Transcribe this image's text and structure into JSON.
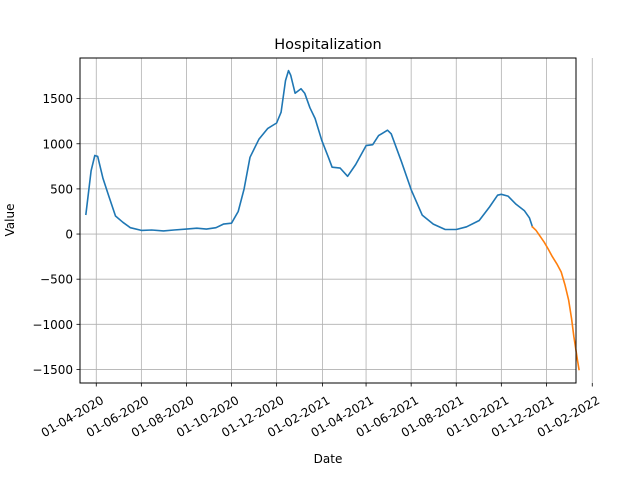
{
  "chart_data": {
    "type": "line",
    "title": "Hospitalization",
    "xlabel": "Date",
    "ylabel": "Value",
    "xlim": [
      "2020-03-10",
      "2022-01-10"
    ],
    "ylim": [
      -1650,
      1950
    ],
    "grid": true,
    "x_ticks": [
      {
        "date": "2020-04-01",
        "label": "01-04-2020"
      },
      {
        "date": "2020-06-01",
        "label": "01-06-2020"
      },
      {
        "date": "2020-08-01",
        "label": "01-08-2020"
      },
      {
        "date": "2020-10-01",
        "label": "01-10-2020"
      },
      {
        "date": "2020-12-01",
        "label": "01-12-2020"
      },
      {
        "date": "2021-02-01",
        "label": "01-02-2021"
      },
      {
        "date": "2021-04-01",
        "label": "01-04-2021"
      },
      {
        "date": "2021-06-01",
        "label": "01-06-2021"
      },
      {
        "date": "2021-08-01",
        "label": "01-08-2021"
      },
      {
        "date": "2021-10-01",
        "label": "01-10-2021"
      },
      {
        "date": "2021-12-01",
        "label": "01-12-2021"
      },
      {
        "date": "2022-02-01",
        "label": "01-02-2022"
      }
    ],
    "y_ticks": [
      {
        "value": 1500,
        "label": "1500"
      },
      {
        "value": 1000,
        "label": "1000"
      },
      {
        "value": 500,
        "label": "500"
      },
      {
        "value": 0,
        "label": "0"
      },
      {
        "value": -500,
        "label": "−500"
      },
      {
        "value": -1000,
        "label": "−1000"
      },
      {
        "value": -1500,
        "label": "−1500"
      }
    ],
    "series": [
      {
        "color": "#1f77b4",
        "points": [
          [
            "2020-03-18",
            220
          ],
          [
            "2020-03-25",
            700
          ],
          [
            "2020-03-30",
            870
          ],
          [
            "2020-04-03",
            860
          ],
          [
            "2020-04-10",
            620
          ],
          [
            "2020-04-18",
            420
          ],
          [
            "2020-04-27",
            200
          ],
          [
            "2020-05-07",
            130
          ],
          [
            "2020-05-17",
            70
          ],
          [
            "2020-06-01",
            40
          ],
          [
            "2020-06-15",
            45
          ],
          [
            "2020-07-01",
            35
          ],
          [
            "2020-07-15",
            45
          ],
          [
            "2020-08-01",
            55
          ],
          [
            "2020-08-15",
            65
          ],
          [
            "2020-08-28",
            55
          ],
          [
            "2020-09-10",
            70
          ],
          [
            "2020-09-20",
            110
          ],
          [
            "2020-10-01",
            120
          ],
          [
            "2020-10-10",
            250
          ],
          [
            "2020-10-18",
            500
          ],
          [
            "2020-10-26",
            850
          ],
          [
            "2020-11-07",
            1050
          ],
          [
            "2020-11-19",
            1170
          ],
          [
            "2020-12-01",
            1230
          ],
          [
            "2020-12-07",
            1350
          ],
          [
            "2020-12-13",
            1700
          ],
          [
            "2020-12-17",
            1810
          ],
          [
            "2020-12-20",
            1760
          ],
          [
            "2020-12-26",
            1560
          ],
          [
            "2021-01-03",
            1610
          ],
          [
            "2021-01-08",
            1560
          ],
          [
            "2021-01-15",
            1400
          ],
          [
            "2021-01-22",
            1280
          ],
          [
            "2021-01-31",
            1040
          ],
          [
            "2021-02-09",
            850
          ],
          [
            "2021-02-14",
            740
          ],
          [
            "2021-02-25",
            730
          ],
          [
            "2021-03-07",
            640
          ],
          [
            "2021-03-18",
            770
          ],
          [
            "2021-04-01",
            980
          ],
          [
            "2021-04-10",
            990
          ],
          [
            "2021-04-18",
            1090
          ],
          [
            "2021-04-30",
            1150
          ],
          [
            "2021-05-05",
            1110
          ],
          [
            "2021-05-19",
            800
          ],
          [
            "2021-06-01",
            490
          ],
          [
            "2021-06-16",
            210
          ],
          [
            "2021-07-01",
            110
          ],
          [
            "2021-07-17",
            50
          ],
          [
            "2021-08-01",
            50
          ],
          [
            "2021-08-15",
            80
          ],
          [
            "2021-09-01",
            150
          ],
          [
            "2021-09-15",
            300
          ],
          [
            "2021-09-26",
            430
          ],
          [
            "2021-10-01",
            440
          ],
          [
            "2021-10-10",
            420
          ],
          [
            "2021-10-21",
            330
          ],
          [
            "2021-11-01",
            260
          ],
          [
            "2021-11-08",
            180
          ],
          [
            "2021-11-12",
            80
          ]
        ]
      },
      {
        "color": "#ff7f0e",
        "points": [
          [
            "2021-11-12",
            80
          ],
          [
            "2021-11-17",
            40
          ],
          [
            "2021-11-22",
            -20
          ],
          [
            "2021-11-28",
            -90
          ],
          [
            "2021-12-03",
            -160
          ],
          [
            "2021-12-09",
            -250
          ],
          [
            "2021-12-15",
            -330
          ],
          [
            "2021-12-21",
            -420
          ],
          [
            "2021-12-26",
            -560
          ],
          [
            "2021-12-31",
            -730
          ],
          [
            "2022-01-04",
            -940
          ],
          [
            "2022-01-07",
            -1130
          ],
          [
            "2022-01-10",
            -1290
          ],
          [
            "2022-01-12",
            -1400
          ],
          [
            "2022-01-14",
            -1500
          ]
        ]
      }
    ]
  }
}
